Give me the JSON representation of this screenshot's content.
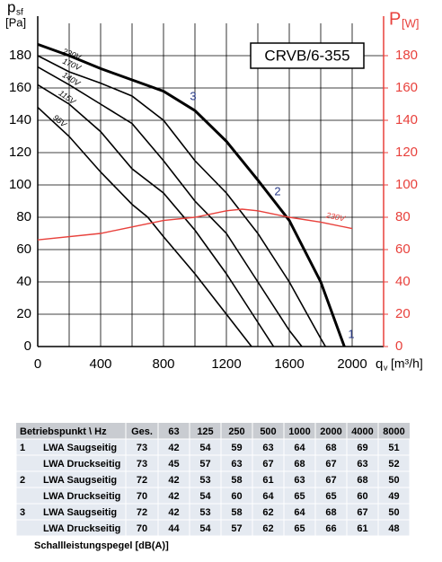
{
  "chart_data": {
    "type": "line",
    "title": "CRVB/6-355",
    "ylabel": "p",
    "ylabel_sub": "sf",
    "yunit": "[Pa]",
    "y2label": "P",
    "y2unit": "[W]",
    "xlabel": "q",
    "xlabel_sub": "v",
    "xunit": "[m³/h]",
    "xlim": [
      0,
      2200
    ],
    "xticks": [
      0,
      400,
      800,
      1200,
      1600,
      2000
    ],
    "xgrid_minor": [
      200,
      600,
      1000,
      1400,
      1800,
      2200
    ],
    "ylim": [
      0,
      200
    ],
    "yticks": [
      0,
      20,
      40,
      60,
      80,
      100,
      120,
      140,
      160,
      180
    ],
    "y2lim": [
      0,
      200
    ],
    "y2ticks": [
      0,
      20,
      40,
      60,
      80,
      100,
      120,
      140,
      160,
      180
    ],
    "grid": true,
    "annotations": [
      "1",
      "2",
      "3"
    ],
    "series": [
      {
        "name": "230V",
        "color": "#000000",
        "width": 3,
        "x": [
          0,
          200,
          400,
          600,
          800,
          1000,
          1200,
          1400,
          1600,
          1800,
          1950
        ],
        "values": [
          187,
          180,
          172,
          165,
          158,
          146,
          127,
          103,
          78,
          40,
          0
        ]
      },
      {
        "name": "170V",
        "color": "#000000",
        "width": 1.6,
        "x": [
          0,
          200,
          400,
          600,
          800,
          1000,
          1200,
          1400,
          1600,
          1800,
          1830
        ],
        "values": [
          180,
          170,
          163,
          155,
          140,
          115,
          95,
          70,
          40,
          5,
          0
        ]
      },
      {
        "name": "140V",
        "color": "#000000",
        "width": 1.6,
        "x": [
          0,
          200,
          400,
          600,
          800,
          1000,
          1200,
          1400,
          1600,
          1680
        ],
        "values": [
          173,
          162,
          150,
          138,
          115,
          90,
          70,
          40,
          10,
          0
        ]
      },
      {
        "name": "115V",
        "color": "#000000",
        "width": 1.6,
        "x": [
          0,
          200,
          400,
          600,
          800,
          1000,
          1200,
          1400,
          1500
        ],
        "values": [
          162,
          150,
          133,
          110,
          95,
          72,
          45,
          15,
          0
        ]
      },
      {
        "name": "95V",
        "color": "#000000",
        "width": 1.6,
        "x": [
          0,
          200,
          400,
          600,
          700,
          800,
          1000,
          1200,
          1360
        ],
        "values": [
          148,
          130,
          108,
          88,
          80,
          68,
          45,
          20,
          0
        ]
      },
      {
        "name": "230V",
        "color": "#e8413c",
        "width": 1.4,
        "axis": "y2",
        "x": [
          0,
          400,
          800,
          1000,
          1200,
          1300,
          1400,
          1600,
          1800,
          2000
        ],
        "values": [
          66,
          70,
          78,
          80,
          84,
          85,
          84,
          80,
          77,
          73
        ]
      }
    ]
  },
  "table": {
    "header": [
      "Betriebspunkt \\ Hz",
      "Ges.",
      "63",
      "125",
      "250",
      "500",
      "1000",
      "2000",
      "4000",
      "8000"
    ],
    "groups": [
      {
        "point": "1",
        "rows": [
          {
            "label": "LWA Saugseitig",
            "values": [
              73,
              42,
              54,
              59,
              63,
              64,
              68,
              69,
              51
            ]
          },
          {
            "label": "LWA Druckseitig",
            "values": [
              73,
              45,
              57,
              63,
              67,
              68,
              67,
              63,
              52
            ]
          }
        ]
      },
      {
        "point": "2",
        "rows": [
          {
            "label": "LWA Saugseitig",
            "values": [
              72,
              42,
              53,
              58,
              61,
              63,
              67,
              68,
              50
            ]
          },
          {
            "label": "LWA Druckseitig",
            "values": [
              70,
              42,
              54,
              60,
              64,
              65,
              65,
              60,
              49
            ]
          }
        ]
      },
      {
        "point": "3",
        "rows": [
          {
            "label": "LWA Saugseitig",
            "values": [
              72,
              42,
              53,
              58,
              62,
              64,
              68,
              67,
              50
            ]
          },
          {
            "label": "LWA Druckseitig",
            "values": [
              70,
              44,
              54,
              57,
              62,
              65,
              66,
              61,
              48
            ]
          }
        ]
      }
    ],
    "footer": "Schallleistungspegel [dB(A)]"
  }
}
